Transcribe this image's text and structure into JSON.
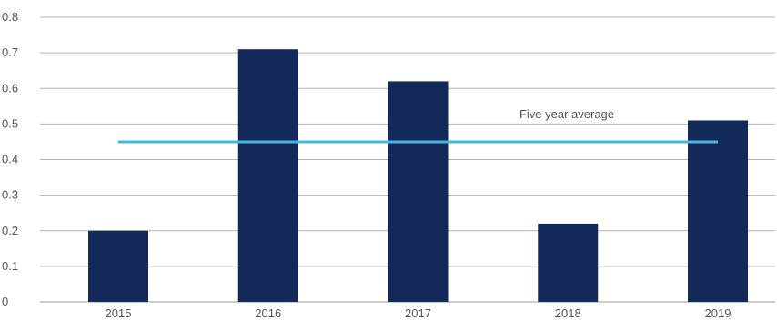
{
  "chart_data": {
    "type": "bar",
    "categories": [
      "2015",
      "2016",
      "2017",
      "2018",
      "2019"
    ],
    "values": [
      0.2,
      0.71,
      0.62,
      0.22,
      0.51
    ],
    "ylim": [
      0,
      0.8
    ],
    "yticks": [
      "0",
      "0.1",
      "0.2",
      "0.3",
      "0.4",
      "0.5",
      "0.6",
      "0.7",
      "0.8"
    ],
    "grid": true,
    "reference_line": {
      "label": "Five year average",
      "value": 0.45
    },
    "colors": {
      "bar": "#12295a",
      "average_line": "#45b6e6",
      "grid": "#b3b3b3",
      "axis": "#9a9a9a"
    }
  }
}
